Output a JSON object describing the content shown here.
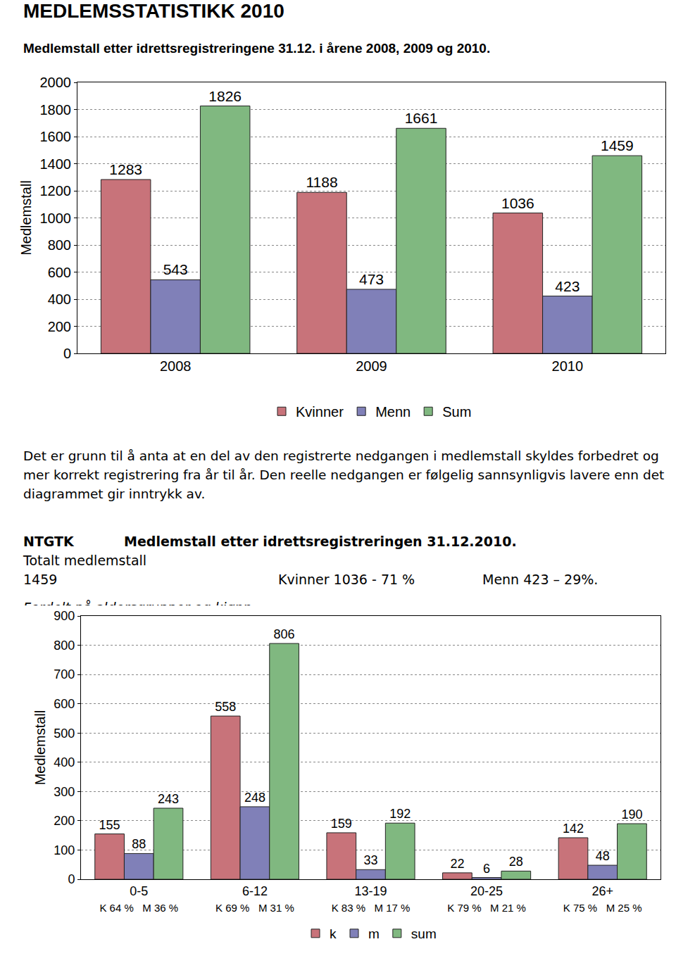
{
  "title": "MEDLEMSSTATISTIKK 2010",
  "subtitle": "Medlemstall etter idrettsregistreringene 31.12. i årene 2008, 2009 og 2010.",
  "note": "Det er grunn til å anta at en del av den registrerte nedgangen i medlemstall skyldes forbedret og mer korrekt registrering fra år til år. Den reelle nedgangen er følgelig sannsynligvis lavere enn det diagrammet gir inntrykk av.",
  "summary": {
    "club": "NTGTK",
    "heading": "Medlemstall etter idrettsregistreringen 31.12.2010.",
    "items": [
      "Totalt medlemstall 1459",
      "Kvinner 1036 - 71 %",
      "Menn 423 – 29%."
    ],
    "caption": "Fordelt på aldersgrupper og kjønn:"
  },
  "chart_data": [
    {
      "type": "bar",
      "y_label": "Medlemstall",
      "categories": [
        "2008",
        "2009",
        "2010"
      ],
      "series": [
        {
          "name": "Kvinner",
          "color": "#c8737a",
          "values": [
            1283,
            1188,
            1036
          ]
        },
        {
          "name": "Menn",
          "color": "#8080b8",
          "values": [
            543,
            473,
            423
          ]
        },
        {
          "name": "Sum",
          "color": "#80b880",
          "values": [
            1826,
            1661,
            1459
          ]
        }
      ],
      "ylim": [
        0,
        2000
      ],
      "yticks": [
        0,
        200,
        400,
        600,
        800,
        1000,
        1200,
        1400,
        1600,
        1800,
        2000
      ],
      "grid": true,
      "legend": "bottom",
      "data_labels": true
    },
    {
      "type": "bar",
      "y_label": "Medlemstall",
      "categories": [
        "0-5",
        "6-12",
        "13-19",
        "20-25",
        "26+"
      ],
      "category_notes": [
        "K 64 %   M 36 %",
        "K 69 %   M 31 %",
        "K 83 %   M 17 %",
        "K 79 %   M 21 %",
        "K 75 %   M 25 %"
      ],
      "series": [
        {
          "name": "k",
          "color": "#c8737a",
          "values": [
            155,
            558,
            159,
            22,
            142
          ]
        },
        {
          "name": "m",
          "color": "#8080b8",
          "values": [
            88,
            248,
            33,
            6,
            48
          ]
        },
        {
          "name": "sum",
          "color": "#80b880",
          "values": [
            243,
            806,
            192,
            28,
            190
          ]
        }
      ],
      "ylim": [
        0,
        900
      ],
      "yticks": [
        0,
        100,
        200,
        300,
        400,
        500,
        600,
        700,
        800,
        900
      ],
      "grid": true,
      "legend": "bottom",
      "data_labels": true
    }
  ]
}
